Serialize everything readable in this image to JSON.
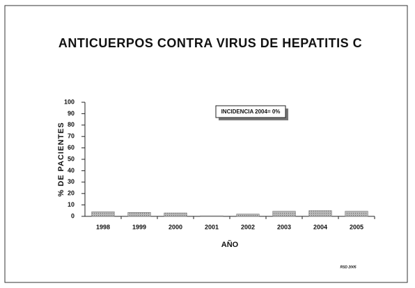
{
  "chart_data": {
    "type": "bar",
    "title": "ANTICUERPOS CONTRA VIRUS DE HEPATITIS C",
    "y_label": "% DE PACIENTES",
    "x_label": "AÑO",
    "annotation": "INCIDENCIA 2004= 0%",
    "footnote": "RSD 2005",
    "categories": [
      "1998",
      "1999",
      "2000",
      "2001",
      "2002",
      "2003",
      "2004",
      "2005"
    ],
    "values": [
      4,
      3.5,
      3,
      0.5,
      2,
      4.5,
      5,
      4.5
    ],
    "color": "#a8a8a8",
    "ylim": [
      0,
      100
    ],
    "yticks": [
      0,
      10,
      20,
      30,
      40,
      50,
      60,
      70,
      80,
      90,
      100
    ],
    "grid": false
  }
}
